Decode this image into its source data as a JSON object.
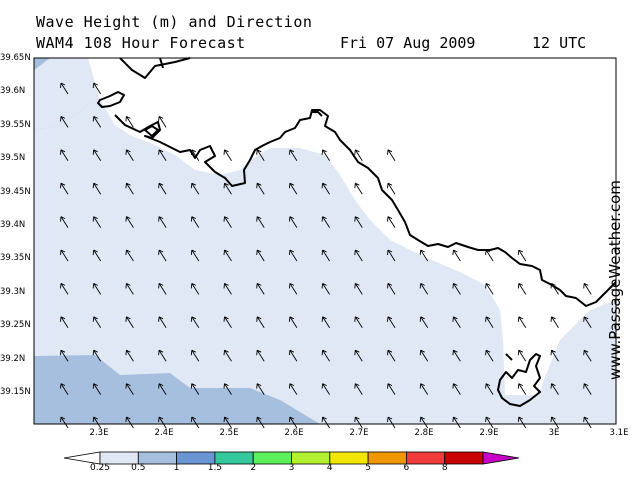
{
  "header": {
    "line1": "Wave Height (m) and Direction",
    "line2": "WAM4 108 Hour Forecast",
    "date": "Fri 07 Aug 2009",
    "time": "12 UTC"
  },
  "brand": "www.PassageWeather.com",
  "axes": {
    "lat_labels": [
      "39.65N",
      "39.6N",
      "39.55N",
      "39.5N",
      "39.45N",
      "39.4N",
      "39.35N",
      "39.3N",
      "39.25N",
      "39.2N",
      "39.15N"
    ],
    "lon_labels": [
      "2.3E",
      "2.4E",
      "2.5E",
      "2.6E",
      "2.7E",
      "2.8E",
      "2.9E",
      "3E",
      "3.1E"
    ]
  },
  "legend": {
    "values": [
      "0.25",
      "0.5",
      "1",
      "1.5",
      "2",
      "3",
      "4",
      "5",
      "6",
      "8"
    ],
    "colors": [
      "#ffffff",
      "#dfe8f4",
      "#a7bfdf",
      "#6a95d2",
      "#35c89d",
      "#5cf05c",
      "#b4f032",
      "#f0e600",
      "#f09600",
      "#f03c3c",
      "#c80000",
      "#c800c8"
    ]
  },
  "map": {
    "sea_colors": {
      "light": "#dfe8f4",
      "medium": "#a7bfdf",
      "land": "#ffffff"
    },
    "wave_direction": "toward north-northwest"
  }
}
